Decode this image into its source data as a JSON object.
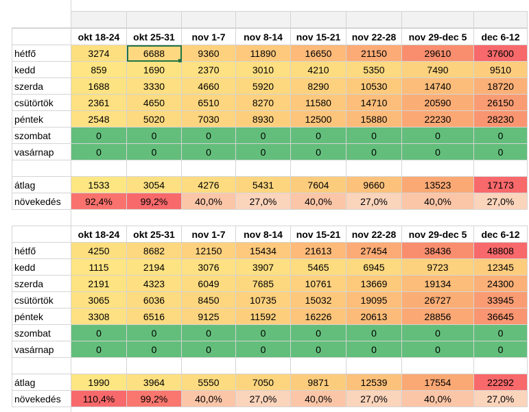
{
  "colors": {
    "green": "#63be7b",
    "header_gray": "#f2f2f2",
    "grid": "#d4d4d4",
    "selection": "#217346"
  },
  "tables": [
    {
      "headers": [
        "okt 18-24",
        "okt 25-31",
        "nov 1-7",
        "nov 8-14",
        "nov 15-21",
        "nov 22-28",
        "nov 29-dec 5",
        "dec 6-12"
      ],
      "rows": [
        {
          "label": "hétfő",
          "values": [
            "3274",
            "6688",
            "9360",
            "11890",
            "16650",
            "21150",
            "29610",
            "37600"
          ],
          "colors": [
            "#fddf80",
            "#fed880",
            "#fed17e",
            "#fec97c",
            "#fdba79",
            "#fcab76",
            "#f98e6f",
            "#f8696b"
          ]
        },
        {
          "label": "kedd",
          "values": [
            "859",
            "1690",
            "2370",
            "3010",
            "4210",
            "5350",
            "7490",
            "9510"
          ],
          "colors": [
            "#ffe583",
            "#fee382",
            "#fee182",
            "#fedf81",
            "#fddc80",
            "#fdd97f",
            "#fdd27e",
            "#fdcc7d"
          ]
        },
        {
          "label": "szerda",
          "values": [
            "1688",
            "3330",
            "4660",
            "5920",
            "8290",
            "10530",
            "14740",
            "18720"
          ],
          "colors": [
            "#fee382",
            "#fedf81",
            "#fddb80",
            "#fdd87f",
            "#fdd17e",
            "#fdca7c",
            "#fcbd7a",
            "#fbb077"
          ]
        },
        {
          "label": "csütörtök",
          "values": [
            "2361",
            "4650",
            "6510",
            "8270",
            "11580",
            "14710",
            "20590",
            "26150"
          ],
          "colors": [
            "#fee182",
            "#fddb80",
            "#fdd67f",
            "#fdd17e",
            "#fdc87c",
            "#fcbe7a",
            "#fbad76",
            "#fa9c73"
          ]
        },
        {
          "label": "péntek",
          "values": [
            "2548",
            "5020",
            "7030",
            "8930",
            "12500",
            "15880",
            "22230",
            "28230"
          ],
          "colors": [
            "#fee182",
            "#fdda80",
            "#fdd47f",
            "#fdcf7d",
            "#fcc57b",
            "#fcbb79",
            "#fba875",
            "#f99571"
          ]
        },
        {
          "label": "szombat",
          "values": [
            "0",
            "0",
            "0",
            "0",
            "0",
            "0",
            "0",
            "0"
          ],
          "colors": [
            "#63be7b",
            "#63be7b",
            "#63be7b",
            "#63be7b",
            "#63be7b",
            "#63be7b",
            "#63be7b",
            "#63be7b"
          ]
        },
        {
          "label": "vasárnap",
          "values": [
            "0",
            "0",
            "0",
            "0",
            "0",
            "0",
            "0",
            "0"
          ],
          "colors": [
            "#63be7b",
            "#63be7b",
            "#63be7b",
            "#63be7b",
            "#63be7b",
            "#63be7b",
            "#63be7b",
            "#63be7b"
          ]
        }
      ],
      "avg": {
        "label": "átlag",
        "values": [
          "1533",
          "3054",
          "4276",
          "5431",
          "7604",
          "9660",
          "13523",
          "17173"
        ],
        "colors": [
          "#fee683",
          "#fde081",
          "#fddb80",
          "#fdd57f",
          "#fccc7d",
          "#fcc17b",
          "#faa874",
          "#f8696b"
        ]
      },
      "growth": {
        "label": "növekedés",
        "values": [
          "92,4%",
          "99,2%",
          "40,0%",
          "27,0%",
          "40,0%",
          "27,0%",
          "40,0%",
          "27,0%"
        ],
        "colors": [
          "#f9726d",
          "#f8696b",
          "#fbc6a8",
          "#fbd4bc",
          "#fbc6a8",
          "#fbd4bc",
          "#fbc6a8",
          "#fbd4bc"
        ]
      }
    },
    {
      "headers": [
        "okt 18-24",
        "okt 25-31",
        "nov 1-7",
        "nov 8-14",
        "nov 15-21",
        "nov 22-28",
        "nov 29-dec 5",
        "dec 6-12"
      ],
      "rows": [
        {
          "label": "hétfő",
          "values": [
            "4250",
            "8682",
            "12150",
            "15434",
            "21613",
            "27454",
            "38436",
            "48808"
          ],
          "colors": [
            "#fddf80",
            "#fed880",
            "#fed17e",
            "#fec97c",
            "#fdba79",
            "#fcab76",
            "#f98e6f",
            "#f8696b"
          ]
        },
        {
          "label": "kedd",
          "values": [
            "1115",
            "2194",
            "3076",
            "3907",
            "5465",
            "6945",
            "9723",
            "12345"
          ],
          "colors": [
            "#ffe583",
            "#fee382",
            "#fee182",
            "#fedf81",
            "#fddc80",
            "#fdd97f",
            "#fdd27e",
            "#fdcc7d"
          ]
        },
        {
          "label": "szerda",
          "values": [
            "2191",
            "4323",
            "6049",
            "7685",
            "10761",
            "13669",
            "19134",
            "24300"
          ],
          "colors": [
            "#fee382",
            "#fedf81",
            "#fddb80",
            "#fdd87f",
            "#fdd17e",
            "#fdca7c",
            "#fcbd7a",
            "#fbb077"
          ]
        },
        {
          "label": "csütörtök",
          "values": [
            "3065",
            "6036",
            "8450",
            "10735",
            "15032",
            "19095",
            "26727",
            "33945"
          ],
          "colors": [
            "#fee182",
            "#fddb80",
            "#fdd67f",
            "#fdd17e",
            "#fdc87c",
            "#fcbe7a",
            "#fbad76",
            "#fa9c73"
          ]
        },
        {
          "label": "péntek",
          "values": [
            "3308",
            "6516",
            "9125",
            "11592",
            "16226",
            "20613",
            "28856",
            "36645"
          ],
          "colors": [
            "#fee182",
            "#fdda80",
            "#fdd47f",
            "#fdcf7d",
            "#fcc57b",
            "#fcbb79",
            "#fba875",
            "#f99571"
          ]
        },
        {
          "label": "szombat",
          "values": [
            "0",
            "0",
            "0",
            "0",
            "0",
            "0",
            "0",
            "0"
          ],
          "colors": [
            "#63be7b",
            "#63be7b",
            "#63be7b",
            "#63be7b",
            "#63be7b",
            "#63be7b",
            "#63be7b",
            "#63be7b"
          ]
        },
        {
          "label": "vasárnap",
          "values": [
            "0",
            "0",
            "0",
            "0",
            "0",
            "0",
            "0",
            "0"
          ],
          "colors": [
            "#63be7b",
            "#63be7b",
            "#63be7b",
            "#63be7b",
            "#63be7b",
            "#63be7b",
            "#63be7b",
            "#63be7b"
          ]
        }
      ],
      "avg": {
        "label": "átlag",
        "values": [
          "1990",
          "3964",
          "5550",
          "7050",
          "9871",
          "12539",
          "17554",
          "22292"
        ],
        "colors": [
          "#fee683",
          "#fde081",
          "#fddb80",
          "#fdd57f",
          "#fccc7d",
          "#fcc17b",
          "#faa874",
          "#f8696b"
        ]
      },
      "growth": {
        "label": "növekedés",
        "values": [
          "110,4%",
          "99,2%",
          "40,0%",
          "27,0%",
          "40,0%",
          "27,0%",
          "40,0%",
          "27,0%"
        ],
        "colors": [
          "#f8696b",
          "#f9776e",
          "#fbc6a8",
          "#fbd4bc",
          "#fbc6a8",
          "#fbd4bc",
          "#fbc6a8",
          "#fbd4bc"
        ]
      }
    }
  ]
}
